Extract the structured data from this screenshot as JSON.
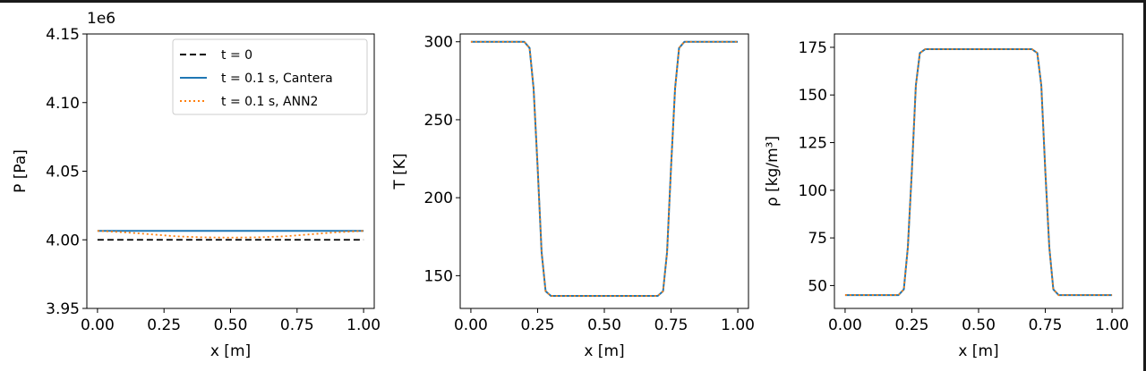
{
  "chart_data": [
    {
      "type": "line",
      "title": "",
      "xlabel": "x [m]",
      "ylabel": "P [Pa]",
      "offset_text": "1e6",
      "xlim": [
        -0.04,
        1.04
      ],
      "ylim": [
        3.95,
        4.15
      ],
      "xticks": [
        0.0,
        0.25,
        0.5,
        0.75,
        1.0
      ],
      "xtick_labels": [
        "0.00",
        "0.25",
        "0.50",
        "0.75",
        "1.00"
      ],
      "yticks": [
        3.95,
        4.0,
        4.05,
        4.1,
        4.15
      ],
      "ytick_labels": [
        "3.95",
        "4.00",
        "4.05",
        "4.10",
        "4.15"
      ],
      "legend": {
        "location": "upper right",
        "entries": [
          "t = 0",
          "t = 0.1 s, Cantera",
          "t = 0.1 s, ANN2"
        ]
      },
      "series": [
        {
          "name": "t = 0",
          "color": "#000000",
          "style": "dashed",
          "x": [
            0.0,
            0.25,
            0.5,
            0.75,
            1.0
          ],
          "y": [
            4.0,
            4.0,
            4.0,
            4.0,
            4.0
          ]
        },
        {
          "name": "t = 0.1 s, Cantera",
          "color": "#1f77b4",
          "style": "solid",
          "x": [
            0.0,
            0.25,
            0.5,
            0.75,
            1.0
          ],
          "y": [
            4.0065,
            4.0065,
            4.0065,
            4.0065,
            4.0065
          ]
        },
        {
          "name": "t = 0.1 s, ANN2",
          "color": "#ff7f0e",
          "style": "dotted",
          "x": [
            0.0,
            0.1,
            0.2,
            0.3,
            0.4,
            0.5,
            0.6,
            0.7,
            0.8,
            0.9,
            1.0
          ],
          "y": [
            4.0065,
            4.0055,
            4.004,
            4.0025,
            4.0018,
            4.0016,
            4.0018,
            4.0025,
            4.004,
            4.0055,
            4.0065
          ]
        }
      ]
    },
    {
      "type": "line",
      "title": "",
      "xlabel": "x [m]",
      "ylabel": "T [K]",
      "xlim": [
        -0.04,
        1.04
      ],
      "ylim": [
        129,
        305
      ],
      "xticks": [
        0.0,
        0.25,
        0.5,
        0.75,
        1.0
      ],
      "xtick_labels": [
        "0.00",
        "0.25",
        "0.50",
        "0.75",
        "1.00"
      ],
      "yticks": [
        150,
        200,
        250,
        300
      ],
      "ytick_labels": [
        "150",
        "200",
        "250",
        "300"
      ],
      "series": [
        {
          "name": "",
          "color": "#1f77b4",
          "style": "solid",
          "x": [
            0.0,
            0.2,
            0.22,
            0.235,
            0.25,
            0.265,
            0.28,
            0.3,
            0.7,
            0.72,
            0.735,
            0.75,
            0.765,
            0.78,
            0.8,
            1.0
          ],
          "y": [
            300,
            300,
            296,
            270,
            220,
            165,
            140,
            137,
            137,
            140,
            165,
            220,
            270,
            296,
            300,
            300
          ]
        },
        {
          "name": "",
          "color": "#ff7f0e",
          "style": "dotted",
          "x": [
            0.0,
            0.2,
            0.22,
            0.235,
            0.25,
            0.265,
            0.28,
            0.3,
            0.7,
            0.72,
            0.735,
            0.75,
            0.765,
            0.78,
            0.8,
            1.0
          ],
          "y": [
            300,
            300,
            296,
            270,
            220,
            165,
            140,
            137,
            137,
            140,
            165,
            220,
            270,
            296,
            300,
            300
          ]
        }
      ]
    },
    {
      "type": "line",
      "title": "",
      "xlabel": "x [m]",
      "ylabel": "ρ [kg/m³]",
      "xlim": [
        -0.04,
        1.04
      ],
      "ylim": [
        38,
        182
      ],
      "xticks": [
        0.0,
        0.25,
        0.5,
        0.75,
        1.0
      ],
      "xtick_labels": [
        "0.00",
        "0.25",
        "0.50",
        "0.75",
        "1.00"
      ],
      "yticks": [
        50,
        75,
        100,
        125,
        150,
        175
      ],
      "ytick_labels": [
        "50",
        "75",
        "100",
        "125",
        "150",
        "175"
      ],
      "series": [
        {
          "name": "",
          "color": "#1f77b4",
          "style": "solid",
          "x": [
            0.0,
            0.2,
            0.22,
            0.235,
            0.25,
            0.265,
            0.28,
            0.3,
            0.7,
            0.72,
            0.735,
            0.75,
            0.765,
            0.78,
            0.8,
            1.0
          ],
          "y": [
            45,
            45,
            48,
            70,
            110,
            155,
            172,
            174,
            174,
            172,
            155,
            110,
            70,
            48,
            45,
            45
          ]
        },
        {
          "name": "",
          "color": "#ff7f0e",
          "style": "dotted",
          "x": [
            0.0,
            0.2,
            0.22,
            0.235,
            0.25,
            0.265,
            0.28,
            0.3,
            0.7,
            0.72,
            0.735,
            0.75,
            0.765,
            0.78,
            0.8,
            1.0
          ],
          "y": [
            45,
            45,
            48,
            70,
            110,
            155,
            172,
            174,
            174,
            172,
            155,
            110,
            70,
            48,
            45,
            45
          ]
        }
      ]
    }
  ]
}
